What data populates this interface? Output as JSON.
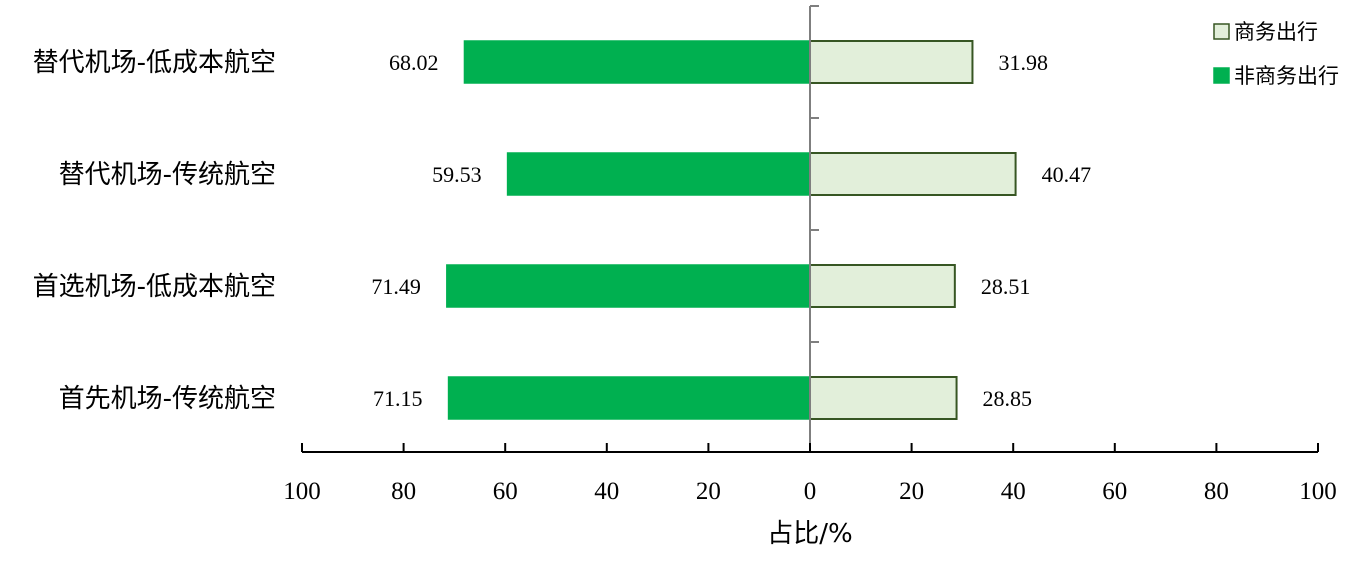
{
  "chart_data": {
    "type": "bar",
    "orientation": "horizontal-diverging",
    "categories": [
      "替代机场-低成本航空",
      "替代机场-传统航空",
      "首选机场-低成本航空",
      "首先机场-传统航空"
    ],
    "series": [
      {
        "name": "商务出行",
        "side": "right",
        "values": [
          31.98,
          40.47,
          28.51,
          28.85
        ],
        "color": "#e2efda",
        "stroke": "#375623"
      },
      {
        "name": "非商务出行",
        "side": "left",
        "values": [
          68.02,
          59.53,
          71.49,
          71.15
        ],
        "color": "#00b050",
        "stroke": "#00b050"
      }
    ],
    "xlabel": "占比/%",
    "xticks": [
      "100",
      "80",
      "60",
      "40",
      "20",
      "0",
      "20",
      "40",
      "60",
      "80",
      "100"
    ],
    "xlim": [
      -100,
      100
    ],
    "legend_position": "top-right",
    "grid": false
  }
}
